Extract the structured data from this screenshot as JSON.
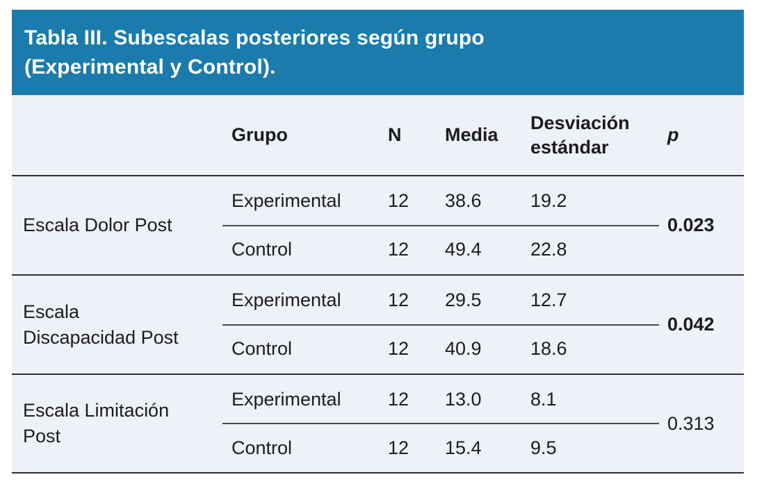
{
  "table": {
    "title": "Tabla III. Subescalas posteriores según grupo\n(Experimental y Control).",
    "header": {
      "grupo": "Grupo",
      "n": "N",
      "media": "Media",
      "desviacion": "Desviación\nestándar",
      "p": "p"
    },
    "rows": [
      {
        "scale": "Escala Dolor Post",
        "groups": [
          {
            "grupo": "Experimental",
            "n": "12",
            "media": "38.6",
            "de": "19.2"
          },
          {
            "grupo": "Control",
            "n": "12",
            "media": "49.4",
            "de": "22.8"
          }
        ],
        "p": "0.023",
        "p_bold": true
      },
      {
        "scale": "Escala\nDiscapacidad Post",
        "groups": [
          {
            "grupo": "Experimental",
            "n": "12",
            "media": "29.5",
            "de": "12.7"
          },
          {
            "grupo": "Control",
            "n": "12",
            "media": "40.9",
            "de": "18.6"
          }
        ],
        "p": "0.042",
        "p_bold": true
      },
      {
        "scale": "Escala Limitación\nPost",
        "groups": [
          {
            "grupo": "Experimental",
            "n": "12",
            "media": "13.0",
            "de": "8.1"
          },
          {
            "grupo": "Control",
            "n": "12",
            "media": "15.4",
            "de": "9.5"
          }
        ],
        "p": "0.313",
        "p_bold": false
      }
    ],
    "colors": {
      "title_bar": "#1a7bac",
      "table_background": "#eef1f7",
      "rule_dark": "#2e2e2e",
      "rule_inner": "#4a4a4a",
      "title_text": "#ffffff",
      "body_text": "#1c1c1e"
    }
  },
  "chart_data": {
    "type": "table",
    "title": "Tabla III. Subescalas posteriores según grupo (Experimental y Control).",
    "columns": [
      "",
      "Grupo",
      "N",
      "Media",
      "Desviación estándar",
      "p"
    ],
    "rows": [
      [
        "Escala Dolor Post",
        "Experimental",
        12,
        38.6,
        19.2,
        0.023
      ],
      [
        "Escala Dolor Post",
        "Control",
        12,
        49.4,
        22.8,
        0.023
      ],
      [
        "Escala Discapacidad Post",
        "Experimental",
        12,
        29.5,
        12.7,
        0.042
      ],
      [
        "Escala Discapacidad Post",
        "Control",
        12,
        40.9,
        18.6,
        0.042
      ],
      [
        "Escala Limitación Post",
        "Experimental",
        12,
        13.0,
        8.1,
        0.313
      ],
      [
        "Escala Limitación Post",
        "Control",
        12,
        15.4,
        9.5,
        0.313
      ]
    ]
  }
}
